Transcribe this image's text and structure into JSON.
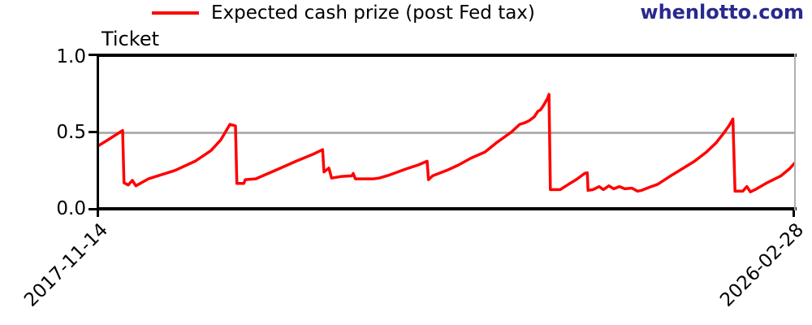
{
  "watermark": {
    "text": "whenlotto.com",
    "color": "#29298f"
  },
  "legend": {
    "label": "Expected cash prize (post Fed tax)",
    "line_color": "#ff0000"
  },
  "chart_data": {
    "type": "line",
    "title": "Ticket",
    "x_axis": {
      "tick_labels": [
        "2017-11-14",
        "2026-02-28"
      ],
      "tick_positions_fraction": [
        0,
        1
      ],
      "label_rotation_deg": 45,
      "unit": "date"
    },
    "y_axis": {
      "range": [
        0.0,
        1.0
      ],
      "ticks": [
        0.0,
        0.5,
        1.0
      ],
      "tick_labels": [
        "0.0",
        "0.5",
        "1.0"
      ]
    },
    "gridlines": {
      "y": [
        0.5
      ],
      "color": "#b0b0b0"
    },
    "axis_color": "#000000",
    "right_spine_color": "#b0b0b0",
    "legend_position": "top-center",
    "series": [
      {
        "name": "Expected cash prize (post Fed tax)",
        "color": "#ff0000",
        "x_unit": "fraction of span from 2017-11-14 to 2026-02-28",
        "points": [
          [
            0.0,
            0.41
          ],
          [
            0.016,
            0.455
          ],
          [
            0.035,
            0.51
          ],
          [
            0.037,
            0.17
          ],
          [
            0.043,
            0.155
          ],
          [
            0.049,
            0.185
          ],
          [
            0.054,
            0.15
          ],
          [
            0.072,
            0.195
          ],
          [
            0.11,
            0.25
          ],
          [
            0.139,
            0.31
          ],
          [
            0.162,
            0.38
          ],
          [
            0.176,
            0.45
          ],
          [
            0.189,
            0.55
          ],
          [
            0.197,
            0.54
          ],
          [
            0.199,
            0.165
          ],
          [
            0.209,
            0.165
          ],
          [
            0.211,
            0.19
          ],
          [
            0.226,
            0.195
          ],
          [
            0.259,
            0.26
          ],
          [
            0.284,
            0.31
          ],
          [
            0.308,
            0.355
          ],
          [
            0.322,
            0.385
          ],
          [
            0.324,
            0.24
          ],
          [
            0.331,
            0.265
          ],
          [
            0.335,
            0.2
          ],
          [
            0.348,
            0.21
          ],
          [
            0.364,
            0.215
          ],
          [
            0.366,
            0.23
          ],
          [
            0.369,
            0.195
          ],
          [
            0.395,
            0.195
          ],
          [
            0.403,
            0.2
          ],
          [
            0.418,
            0.22
          ],
          [
            0.442,
            0.26
          ],
          [
            0.459,
            0.285
          ],
          [
            0.472,
            0.31
          ],
          [
            0.474,
            0.19
          ],
          [
            0.48,
            0.215
          ],
          [
            0.5,
            0.25
          ],
          [
            0.517,
            0.285
          ],
          [
            0.535,
            0.33
          ],
          [
            0.555,
            0.37
          ],
          [
            0.573,
            0.435
          ],
          [
            0.593,
            0.5
          ],
          [
            0.605,
            0.55
          ],
          [
            0.612,
            0.56
          ],
          [
            0.619,
            0.575
          ],
          [
            0.626,
            0.6
          ],
          [
            0.631,
            0.635
          ],
          [
            0.635,
            0.645
          ],
          [
            0.64,
            0.68
          ],
          [
            0.645,
            0.72
          ],
          [
            0.647,
            0.745
          ],
          [
            0.649,
            0.125
          ],
          [
            0.663,
            0.125
          ],
          [
            0.675,
            0.16
          ],
          [
            0.686,
            0.19
          ],
          [
            0.698,
            0.23
          ],
          [
            0.702,
            0.235
          ],
          [
            0.703,
            0.12
          ],
          [
            0.71,
            0.125
          ],
          [
            0.719,
            0.145
          ],
          [
            0.725,
            0.125
          ],
          [
            0.733,
            0.15
          ],
          [
            0.74,
            0.13
          ],
          [
            0.748,
            0.145
          ],
          [
            0.756,
            0.13
          ],
          [
            0.766,
            0.135
          ],
          [
            0.774,
            0.115
          ],
          [
            0.78,
            0.12
          ],
          [
            0.791,
            0.14
          ],
          [
            0.803,
            0.16
          ],
          [
            0.82,
            0.21
          ],
          [
            0.838,
            0.26
          ],
          [
            0.856,
            0.31
          ],
          [
            0.873,
            0.37
          ],
          [
            0.887,
            0.43
          ],
          [
            0.899,
            0.5
          ],
          [
            0.906,
            0.545
          ],
          [
            0.911,
            0.585
          ],
          [
            0.914,
            0.115
          ],
          [
            0.925,
            0.115
          ],
          [
            0.931,
            0.145
          ],
          [
            0.936,
            0.11
          ],
          [
            0.945,
            0.13
          ],
          [
            0.96,
            0.17
          ],
          [
            0.98,
            0.215
          ],
          [
            0.992,
            0.26
          ],
          [
            1.0,
            0.3
          ]
        ]
      }
    ]
  }
}
